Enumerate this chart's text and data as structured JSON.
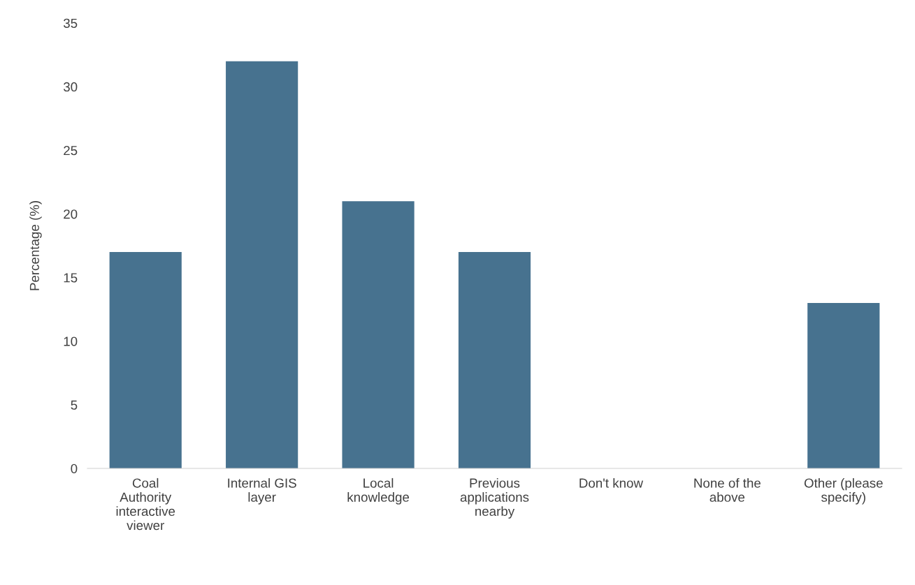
{
  "chart_data": {
    "type": "bar",
    "ylabel": "Percentage (%)",
    "categories": [
      "Coal\nAuthority\ninteractive\nviewer",
      "Internal GIS\nlayer",
      "Local\nknowledge",
      "Previous\napplications\nnearby",
      "Don't know",
      "None of the\nabove",
      "Other (please\nspecify)"
    ],
    "values": [
      17,
      32,
      21,
      17,
      0,
      0,
      13
    ],
    "color": "#47728f",
    "ylim": [
      0,
      35
    ],
    "yticks": [
      0,
      5,
      10,
      15,
      20,
      25,
      30,
      35
    ],
    "grid": false,
    "legend": false
  }
}
